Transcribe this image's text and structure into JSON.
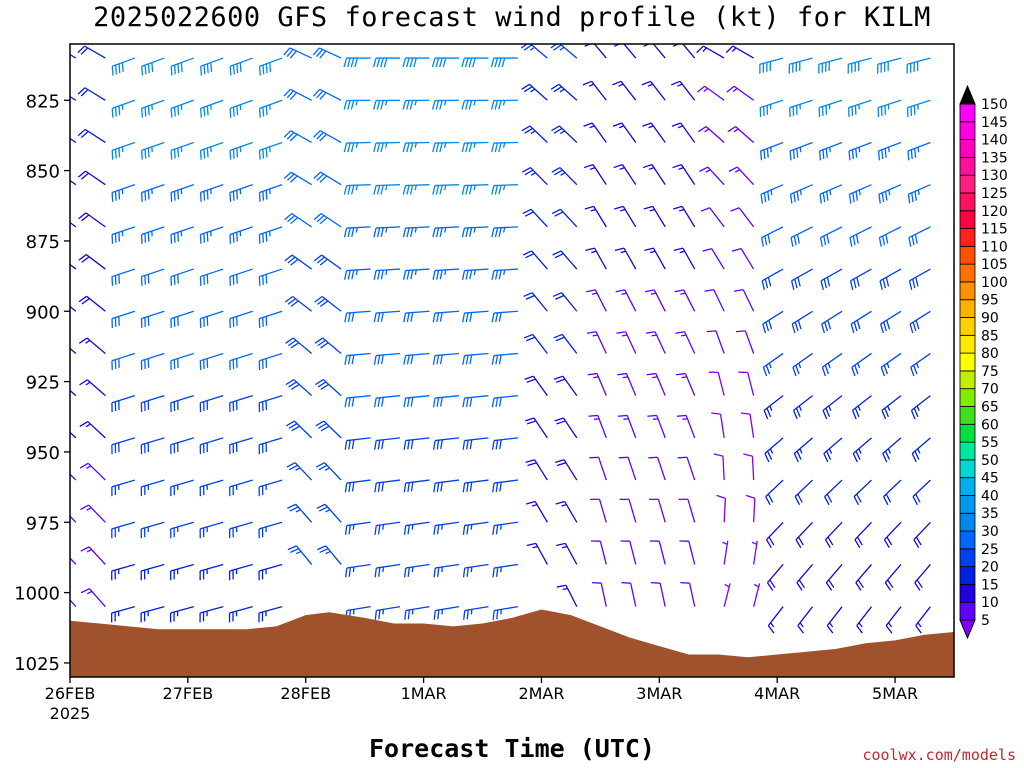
{
  "chart_data": {
    "type": "wind_barb_profile",
    "title": "2025022600 GFS forecast wind profile (kt) for KILM",
    "xlabel": "Forecast Time (UTC)",
    "credit": "coolwx.com/models",
    "x_axis": {
      "unit": "UTC date",
      "ticks": [
        {
          "day": 0,
          "label": "26FEB",
          "sublabel": "2025"
        },
        {
          "day": 1,
          "label": "27FEB"
        },
        {
          "day": 2,
          "label": "28FEB"
        },
        {
          "day": 3,
          "label": "1MAR"
        },
        {
          "day": 4,
          "label": "2MAR"
        },
        {
          "day": 5,
          "label": "3MAR"
        },
        {
          "day": 6,
          "label": "4MAR"
        },
        {
          "day": 7,
          "label": "5MAR"
        }
      ],
      "range_days": [
        0,
        7.5
      ],
      "barb_step_hours": 6
    },
    "y_axis": {
      "unit": "hPa",
      "inverted": true,
      "range": [
        805,
        1030
      ],
      "ticks": [
        825,
        850,
        875,
        900,
        925,
        950,
        975,
        1000,
        1025
      ],
      "barb_levels": [
        810,
        825,
        840,
        855,
        870,
        885,
        900,
        915,
        930,
        945,
        960,
        975,
        990,
        1005,
        1020
      ]
    },
    "surface_pressure": {
      "color": "#a0522d",
      "points": [
        [
          0,
          1010
        ],
        [
          0.25,
          1011
        ],
        [
          0.5,
          1012
        ],
        [
          0.75,
          1013
        ],
        [
          1.0,
          1013
        ],
        [
          1.25,
          1013
        ],
        [
          1.5,
          1013
        ],
        [
          1.75,
          1012
        ],
        [
          2.0,
          1008
        ],
        [
          2.2,
          1007
        ],
        [
          2.5,
          1009
        ],
        [
          2.75,
          1011
        ],
        [
          3.0,
          1011
        ],
        [
          3.25,
          1012
        ],
        [
          3.5,
          1011
        ],
        [
          3.75,
          1009
        ],
        [
          4.0,
          1006
        ],
        [
          4.25,
          1008
        ],
        [
          4.5,
          1012
        ],
        [
          4.75,
          1016
        ],
        [
          5.0,
          1019
        ],
        [
          5.25,
          1022
        ],
        [
          5.5,
          1022
        ],
        [
          5.75,
          1023
        ],
        [
          6.0,
          1022
        ],
        [
          6.25,
          1021
        ],
        [
          6.5,
          1020
        ],
        [
          6.75,
          1018
        ],
        [
          7.0,
          1017
        ],
        [
          7.25,
          1015
        ],
        [
          7.5,
          1014
        ]
      ]
    },
    "colorbar": {
      "unit": "kt",
      "levels": [
        5,
        10,
        15,
        20,
        25,
        30,
        35,
        40,
        45,
        50,
        55,
        60,
        65,
        70,
        75,
        80,
        85,
        90,
        95,
        100,
        105,
        110,
        115,
        120,
        125,
        130,
        135,
        140,
        145,
        150
      ],
      "colors": [
        "#8000ff",
        "#6000ff",
        "#2000e0",
        "#0020e0",
        "#0040f0",
        "#0066ff",
        "#0088ee",
        "#0099ee",
        "#00b0ee",
        "#00d8d0",
        "#00e8a0",
        "#00e040",
        "#40e020",
        "#80ee00",
        "#c0f000",
        "#ffff00",
        "#ffe800",
        "#ffd000",
        "#ffb000",
        "#ff9000",
        "#ff7000",
        "#ff5000",
        "#ff2020",
        "#ff0040",
        "#ff1060",
        "#ff2080",
        "#ff10a0",
        "#ff00c0",
        "#ff00e0",
        "#ff00ff"
      ]
    },
    "wind_regimes": [
      {
        "start_day": 0.0,
        "end_day": 0.5,
        "low_dir": 320,
        "low_spd": 12,
        "high_dir": 300,
        "high_spd": 22
      },
      {
        "start_day": 0.5,
        "end_day": 2.0,
        "low_dir": 255,
        "low_spd": 22,
        "high_dir": 250,
        "high_spd": 38
      },
      {
        "start_day": 2.0,
        "end_day": 2.5,
        "low_dir": 325,
        "low_spd": 25,
        "high_dir": 295,
        "high_spd": 32
      },
      {
        "start_day": 2.5,
        "end_day": 4.0,
        "low_dir": 260,
        "low_spd": 24,
        "high_dir": 270,
        "high_spd": 38
      },
      {
        "start_day": 4.0,
        "end_day": 4.5,
        "low_dir": 335,
        "low_spd": 15,
        "high_dir": 310,
        "high_spd": 25
      },
      {
        "start_day": 4.5,
        "end_day": 5.5,
        "low_dir": 350,
        "low_spd": 10,
        "high_dir": 320,
        "high_spd": 18
      },
      {
        "start_day": 5.5,
        "end_day": 6.0,
        "low_dir": 20,
        "low_spd": 6,
        "high_dir": 300,
        "high_spd": 15
      },
      {
        "start_day": 6.0,
        "end_day": 7.5,
        "low_dir": 215,
        "low_spd": 15,
        "high_dir": 255,
        "high_spd": 38
      }
    ]
  }
}
